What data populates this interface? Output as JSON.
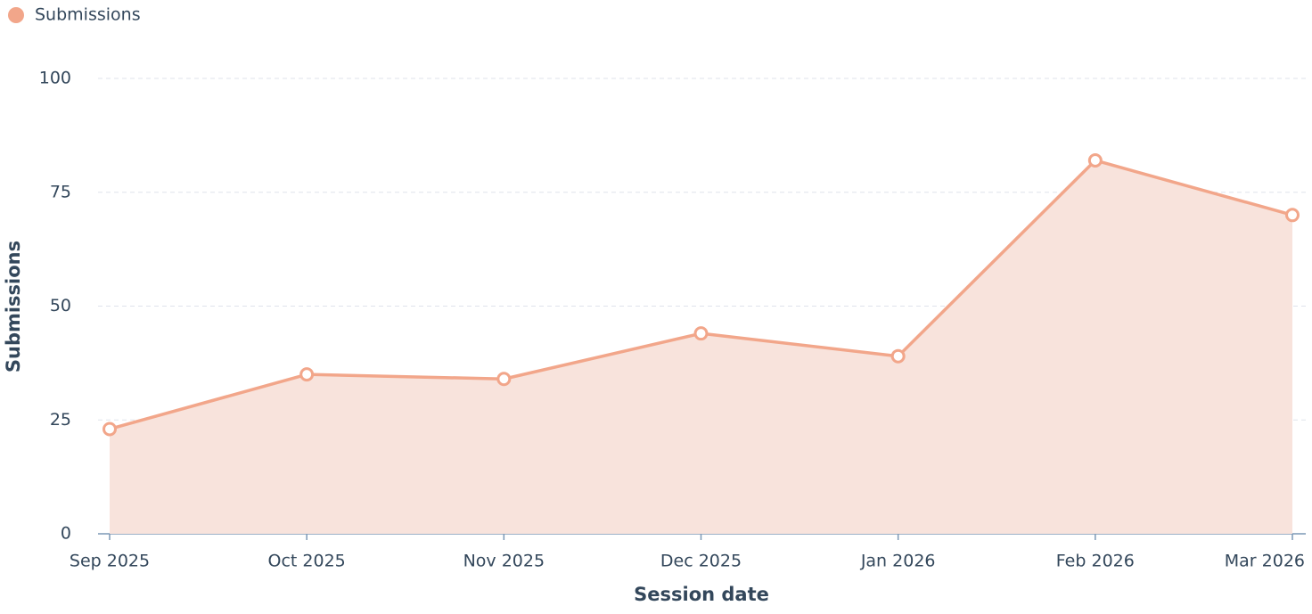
{
  "chart_data": {
    "type": "area",
    "xlabel": "Session date",
    "ylabel": "Submissions",
    "categories": [
      "Sep 2025",
      "Oct 2025",
      "Nov 2025",
      "Dec 2025",
      "Jan 2026",
      "Feb 2026",
      "Mar 2026"
    ],
    "series": [
      {
        "name": "Submissions",
        "color": "#f2a68a",
        "fill_color": "#f8e3dc",
        "values": [
          23,
          35,
          34,
          44,
          39,
          82,
          70
        ]
      }
    ],
    "ylim": [
      0,
      100
    ],
    "yticks": [
      0,
      25,
      50,
      75,
      100
    ],
    "grid": true,
    "legend": "top-left"
  }
}
